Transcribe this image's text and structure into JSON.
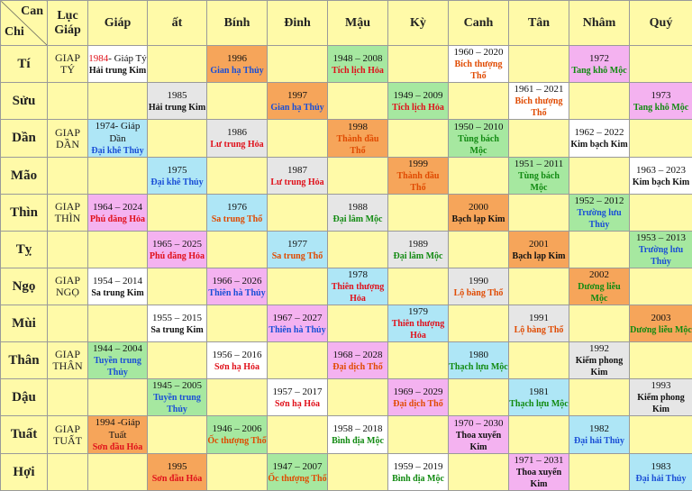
{
  "header": {
    "corner_top": "Can",
    "corner_bottom": "Chi",
    "luc_giap": "Lục Giáp",
    "columns": [
      "Giáp",
      "ất",
      "Bính",
      "Đinh",
      "Mậu",
      "Kỳ",
      "Canh",
      "Tân",
      "Nhâm",
      "Quý"
    ]
  },
  "rows": [
    {
      "chi": "Tí",
      "luc_giap": "GIAP TÝ",
      "cells": [
        {
          "year": "1984",
          "year_color": "#e0101a",
          "year_suffix": "- Giáp Tý",
          "name": "Hải trung Kim",
          "bg": "#ffffff",
          "ink": "#111111"
        },
        null,
        {
          "year": "1996",
          "name": "Gian hạ Thủy",
          "bg": "#f6a55a",
          "ink": "#1a4fd6"
        },
        null,
        {
          "year": "1948 – 2008",
          "name": "Tích lịch Hỏa",
          "bg": "#a6e8a0",
          "ink": "#e0101a"
        },
        null,
        {
          "year": "1960 – 2020",
          "name": "Bích thượng Thổ",
          "bg": "#ffffff",
          "ink": "#e04a00"
        },
        null,
        {
          "year": "1972",
          "name": "Tang khô Mộc",
          "bg": "#f4b2f0",
          "ink": "#118a11"
        },
        null
      ]
    },
    {
      "chi": "Sửu",
      "luc_giap": null,
      "cells": [
        null,
        {
          "year": "1985",
          "name": "Hải trung Kim",
          "bg": "#e6e6e6",
          "ink": "#111111"
        },
        null,
        {
          "year": "1997",
          "name": "Gian hạ Thủy",
          "bg": "#f6a55a",
          "ink": "#1a4fd6"
        },
        null,
        {
          "year": "1949 – 2009",
          "name": "Tích lịch Hỏa",
          "bg": "#a6e8a0",
          "ink": "#e0101a"
        },
        null,
        {
          "year": "1961 – 2021",
          "name": "Bích thượng Thổ",
          "bg": "#ffffff",
          "ink": "#e04a00"
        },
        null,
        {
          "year": "1973",
          "name": "Tang khô Mộc",
          "bg": "#f4b2f0",
          "ink": "#118a11"
        }
      ]
    },
    {
      "chi": "Dần",
      "luc_giap": "GIAP DẦN",
      "cells": [
        {
          "year": "1974- Giáp Dần",
          "name": "Đại khê Thủy",
          "bg": "#aee6f6",
          "ink": "#1a4fd6"
        },
        null,
        {
          "year": "1986",
          "name": "Lư trung Hỏa",
          "bg": "#e6e6e6",
          "ink": "#e0101a"
        },
        null,
        {
          "year": "1998",
          "name": "Thành đầu Thổ",
          "bg": "#f6a55a",
          "ink": "#e04a00"
        },
        null,
        {
          "year": "1950 – 2010",
          "name": "Tùng bách Mộc",
          "bg": "#a6e8a0",
          "ink": "#118a11"
        },
        null,
        {
          "year": "1962 – 2022",
          "name": "Kim bạch Kim",
          "bg": "#ffffff",
          "ink": "#111111"
        },
        null
      ]
    },
    {
      "chi": "Mão",
      "luc_giap": null,
      "cells": [
        null,
        {
          "year": "1975",
          "name": "Đại khê Thủy",
          "bg": "#aee6f6",
          "ink": "#1a4fd6"
        },
        null,
        {
          "year": "1987",
          "name": "Lư trung Hỏa",
          "bg": "#e6e6e6",
          "ink": "#e0101a"
        },
        null,
        {
          "year": "1999",
          "name": "Thành đầu Thổ",
          "bg": "#f6a55a",
          "ink": "#e04a00"
        },
        null,
        {
          "year": "1951 – 2011",
          "name": "Tùng bách Mộc",
          "bg": "#a6e8a0",
          "ink": "#118a11"
        },
        null,
        {
          "year": "1963 – 2023",
          "name": "Kim bạch Kim",
          "bg": "#ffffff",
          "ink": "#111111"
        }
      ]
    },
    {
      "chi": "Thìn",
      "luc_giap": "GIAP THÌN",
      "cells": [
        {
          "year": "1964 – 2024",
          "name": "Phú đăng Hỏa",
          "bg": "#f4b2f0",
          "ink": "#e0101a"
        },
        null,
        {
          "year": "1976",
          "name": "Sa trung Thổ",
          "bg": "#aee6f6",
          "ink": "#e04a00"
        },
        null,
        {
          "year": "1988",
          "name": "Đại lâm Mộc",
          "bg": "#e6e6e6",
          "ink": "#118a11"
        },
        null,
        {
          "year": "2000",
          "name": "Bạch lạp Kim",
          "bg": "#f6a55a",
          "ink": "#111111"
        },
        null,
        {
          "year": "1952 – 2012",
          "name": "Trường lưu Thủy",
          "bg": "#a6e8a0",
          "ink": "#1a4fd6"
        },
        null
      ]
    },
    {
      "chi": "Tỵ",
      "luc_giap": null,
      "cells": [
        null,
        {
          "year": "1965 – 2025",
          "name": "Phú đăng Hỏa",
          "bg": "#f4b2f0",
          "ink": "#e0101a"
        },
        null,
        {
          "year": "1977",
          "name": "Sa trung Thổ",
          "bg": "#aee6f6",
          "ink": "#e04a00"
        },
        null,
        {
          "year": "1989",
          "name": "Đại lâm Mộc",
          "bg": "#e6e6e6",
          "ink": "#118a11"
        },
        null,
        {
          "year": "2001",
          "name": "Bạch lạp Kim",
          "bg": "#f6a55a",
          "ink": "#111111"
        },
        null,
        {
          "year": "1953 – 2013",
          "name": "Trường lưu Thủy",
          "bg": "#a6e8a0",
          "ink": "#1a4fd6"
        }
      ]
    },
    {
      "chi": "Ngọ",
      "luc_giap": "GIAP NGỌ",
      "cells": [
        {
          "year": "1954 – 2014",
          "name": "Sa trung Kim",
          "bg": "#ffffff",
          "ink": "#111111"
        },
        null,
        {
          "year": "1966 – 2026",
          "name": "Thiên hà Thủy",
          "bg": "#f4b2f0",
          "ink": "#1a4fd6"
        },
        null,
        {
          "year": "1978",
          "name": "Thiên thượng Hỏa",
          "bg": "#aee6f6",
          "ink": "#e0101a"
        },
        null,
        {
          "year": "1990",
          "name": "Lộ bàng Thổ",
          "bg": "#e6e6e6",
          "ink": "#e04a00"
        },
        null,
        {
          "year": "2002",
          "name": "Dương liễu Mộc",
          "bg": "#f6a55a",
          "ink": "#118a11"
        },
        null
      ]
    },
    {
      "chi": "Mùi",
      "luc_giap": null,
      "cells": [
        null,
        {
          "year": "1955 – 2015",
          "name": "Sa trung Kim",
          "bg": "#ffffff",
          "ink": "#111111"
        },
        null,
        {
          "year": "1967 – 2027",
          "name": "Thiên hà Thủy",
          "bg": "#f4b2f0",
          "ink": "#1a4fd6"
        },
        null,
        {
          "year": "1979",
          "name": "Thiên thượng Hỏa",
          "bg": "#aee6f6",
          "ink": "#e0101a"
        },
        null,
        {
          "year": "1991",
          "name": "Lộ bàng Thổ",
          "bg": "#e6e6e6",
          "ink": "#e04a00"
        },
        null,
        {
          "year": "2003",
          "name": "Dương liễu Mộc",
          "bg": "#f6a55a",
          "ink": "#118a11"
        }
      ]
    },
    {
      "chi": "Thân",
      "luc_giap": "GIAP THÂN",
      "cells": [
        {
          "year": "1944 – 2004",
          "name": "Tuyền trung Thủy",
          "bg": "#a6e8a0",
          "ink": "#1a4fd6"
        },
        null,
        {
          "year": "1956 – 2016",
          "name": "Sơn hạ Hỏa",
          "bg": "#ffffff",
          "ink": "#e0101a"
        },
        null,
        {
          "year": "1968 – 2028",
          "name": "Đại dịch Thổ",
          "bg": "#f4b2f0",
          "ink": "#e04a00"
        },
        null,
        {
          "year": "1980",
          "name": "Thạch lựu Mộc",
          "bg": "#aee6f6",
          "ink": "#118a11"
        },
        null,
        {
          "year": "1992",
          "name": "Kiếm phong Kim",
          "bg": "#e6e6e6",
          "ink": "#111111"
        },
        null
      ]
    },
    {
      "chi": "Dậu",
      "luc_giap": null,
      "cells": [
        null,
        {
          "year": "1945 – 2005",
          "name": "Tuyền trung Thủy",
          "bg": "#a6e8a0",
          "ink": "#1a4fd6"
        },
        null,
        {
          "year": "1957 – 2017",
          "name": "Sơn hạ Hỏa",
          "bg": "#ffffff",
          "ink": "#e0101a"
        },
        null,
        {
          "year": "1969 – 2029",
          "name": "Đại dịch Thổ",
          "bg": "#f4b2f0",
          "ink": "#e04a00"
        },
        null,
        {
          "year": "1981",
          "name": "Thạch lựu Mộc",
          "bg": "#aee6f6",
          "ink": "#118a11"
        },
        null,
        {
          "year": "1993",
          "name": "Kiếm phong Kim",
          "bg": "#e6e6e6",
          "ink": "#111111"
        }
      ]
    },
    {
      "chi": "Tuất",
      "luc_giap": "GIAP TUẤT",
      "cells": [
        {
          "year": "1994 -Giáp Tuất",
          "name": "Sơn đầu Hỏa",
          "bg": "#f6a55a",
          "ink": "#e0101a"
        },
        null,
        {
          "year": "1946 – 2006",
          "name": "Ốc thượng Thổ",
          "bg": "#a6e8a0",
          "ink": "#e04a00"
        },
        null,
        {
          "year": "1958 – 2018",
          "name": "Bình địa Mộc",
          "bg": "#ffffff",
          "ink": "#118a11"
        },
        null,
        {
          "year": "1970 – 2030",
          "name": "Thoa xuyến Kim",
          "bg": "#f4b2f0",
          "ink": "#111111"
        },
        null,
        {
          "year": "1982",
          "name": "Đại hải Thủy",
          "bg": "#aee6f6",
          "ink": "#1a4fd6"
        },
        null
      ]
    },
    {
      "chi": "Hợi",
      "luc_giap": null,
      "cells": [
        null,
        {
          "year": "1995",
          "name": "Sơn đầu Hỏa",
          "bg": "#f6a55a",
          "ink": "#e0101a"
        },
        null,
        {
          "year": "1947 – 2007",
          "name": "Ốc thượng Thổ",
          "bg": "#a6e8a0",
          "ink": "#e04a00"
        },
        null,
        {
          "year": "1959 – 2019",
          "name": "Bình địa Mộc",
          "bg": "#ffffff",
          "ink": "#118a11"
        },
        null,
        {
          "year": "1971 – 2031",
          "name": "Thoa xuyến Kim",
          "bg": "#f4b2f0",
          "ink": "#111111"
        },
        null,
        {
          "year": "1983",
          "name": "Đại hải Thủy",
          "bg": "#aee6f6",
          "ink": "#1a4fd6"
        }
      ]
    }
  ]
}
